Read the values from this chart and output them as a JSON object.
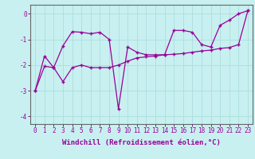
{
  "xlabel": "Windchill (Refroidissement éolien,°C)",
  "background_color": "#c8f0f0",
  "line_color": "#990099",
  "grid_color": "#b0e0e0",
  "x_line1": [
    0,
    1,
    2,
    3,
    4,
    5,
    6,
    7,
    8,
    9,
    10,
    11,
    12,
    13,
    14,
    15,
    16,
    17,
    18,
    19,
    20,
    21,
    22,
    23
  ],
  "y_line1": [
    -3.0,
    -1.65,
    -2.1,
    -1.25,
    -0.7,
    -0.72,
    -0.78,
    -0.72,
    -1.0,
    -3.7,
    -1.3,
    -1.5,
    -1.6,
    -1.6,
    -1.6,
    -0.65,
    -0.65,
    -0.72,
    -1.2,
    -1.3,
    -0.45,
    -0.25,
    0.0,
    0.12
  ],
  "x_line2": [
    0,
    1,
    2,
    3,
    4,
    5,
    6,
    7,
    8,
    9,
    10,
    11,
    12,
    13,
    14,
    15,
    16,
    17,
    18,
    19,
    20,
    21,
    22,
    23
  ],
  "y_line2": [
    -3.0,
    -2.05,
    -2.1,
    -2.65,
    -2.1,
    -2.0,
    -2.1,
    -2.1,
    -2.1,
    -2.0,
    -1.85,
    -1.72,
    -1.68,
    -1.65,
    -1.6,
    -1.58,
    -1.55,
    -1.5,
    -1.45,
    -1.42,
    -1.35,
    -1.32,
    -1.2,
    0.12
  ],
  "ylim": [
    -4.3,
    0.35
  ],
  "xlim": [
    -0.5,
    23.5
  ],
  "yticks": [
    0,
    -1,
    -2,
    -3,
    -4
  ],
  "xticks": [
    0,
    1,
    2,
    3,
    4,
    5,
    6,
    7,
    8,
    9,
    10,
    11,
    12,
    13,
    14,
    15,
    16,
    17,
    18,
    19,
    20,
    21,
    22,
    23
  ],
  "marker": "+",
  "marker_size": 3,
  "line_width": 0.9,
  "xlabel_fontsize": 6.5,
  "tick_fontsize": 5.5
}
